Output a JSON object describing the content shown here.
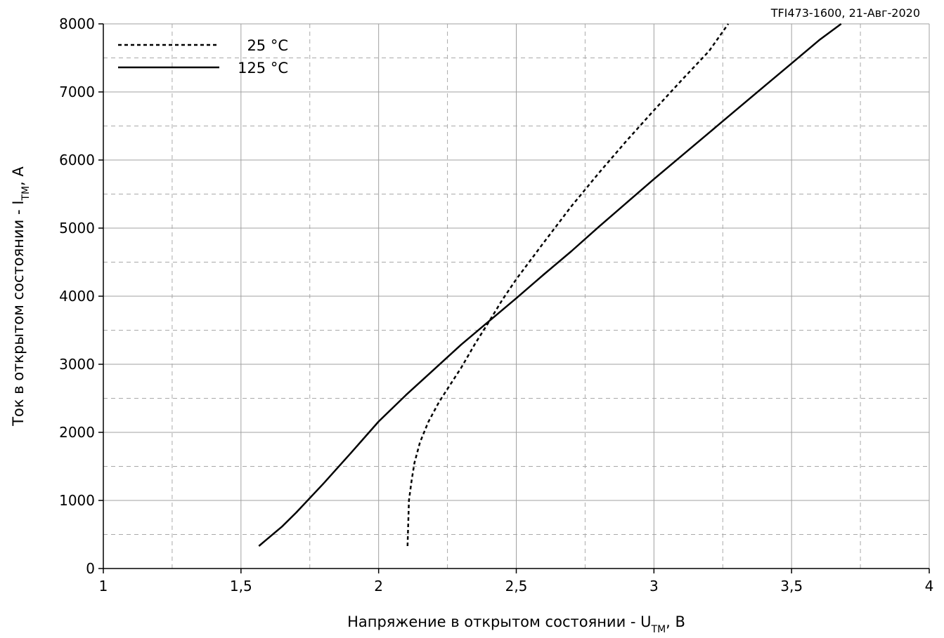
{
  "chart_data": {
    "type": "line",
    "title": "",
    "header_note": "TFI473-1600, 21-Авг-2020",
    "xlabel": {
      "main": "Напряжение в открытом состоянии - U",
      "subscript": "ТМ",
      "suffix": ", В"
    },
    "ylabel": {
      "main": "Ток в открытом состоянии - I",
      "subscript": "ТМ",
      "suffix": ", А"
    },
    "xlim": [
      1,
      4
    ],
    "ylim": [
      0,
      8000
    ],
    "x_ticks": [
      1,
      1.5,
      2,
      2.5,
      3,
      3.5,
      4
    ],
    "x_tick_labels": [
      "1",
      "1,5",
      "2",
      "2,5",
      "3",
      "3,5",
      "4"
    ],
    "y_ticks": [
      0,
      1000,
      2000,
      3000,
      4000,
      5000,
      6000,
      7000,
      8000
    ],
    "y_tick_labels": [
      "0",
      "1000",
      "2000",
      "3000",
      "4000",
      "5000",
      "6000",
      "7000",
      "8000"
    ],
    "x_minor_ticks": [
      1.25,
      1.75,
      2.25,
      2.75,
      3.25,
      3.75
    ],
    "y_minor_ticks": [
      500,
      1500,
      2500,
      3500,
      4500,
      5500,
      6500,
      7500
    ],
    "grid": true,
    "legend_position": "top-left",
    "series": [
      {
        "name": "25 °C",
        "style": "dashed",
        "color": "#000000",
        "x": [
          2.105,
          2.11,
          2.12,
          2.13,
          2.15,
          2.18,
          2.22,
          2.26,
          2.3,
          2.35,
          2.4,
          2.45,
          2.5,
          2.6,
          2.7,
          2.8,
          2.9,
          3.0,
          3.1,
          3.2,
          3.27
        ],
        "y": [
          330,
          1000,
          1300,
          1550,
          1850,
          2150,
          2450,
          2700,
          2950,
          3300,
          3620,
          3950,
          4250,
          4790,
          5320,
          5810,
          6280,
          6730,
          7170,
          7600,
          8000
        ]
      },
      {
        "name": "125 °C",
        "style": "solid",
        "color": "#000000",
        "x": [
          1.565,
          1.6,
          1.65,
          1.7,
          1.8,
          1.9,
          2.0,
          2.1,
          2.2,
          2.3,
          2.4,
          2.5,
          2.6,
          2.7,
          2.8,
          2.9,
          3.0,
          3.1,
          3.2,
          3.3,
          3.4,
          3.5,
          3.6,
          3.68
        ],
        "y": [
          330,
          450,
          620,
          820,
          1250,
          1700,
          2160,
          2550,
          2920,
          3290,
          3630,
          3970,
          4320,
          4660,
          5020,
          5370,
          5720,
          6060,
          6400,
          6740,
          7080,
          7420,
          7760,
          8000
        ]
      }
    ]
  }
}
